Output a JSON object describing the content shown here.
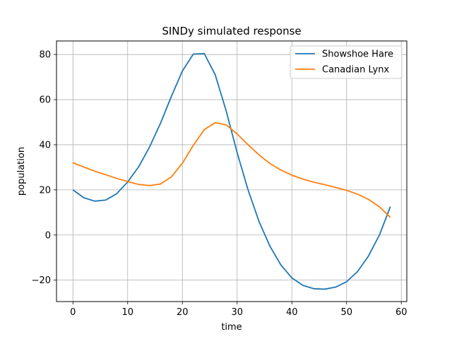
{
  "chart_data": {
    "type": "line",
    "title": "SINDy simulated response",
    "xlabel": "time",
    "ylabel": "population",
    "xlim": [
      -3,
      61
    ],
    "ylim": [
      -29.5,
      86
    ],
    "xticks": [
      0,
      10,
      20,
      30,
      40,
      50,
      60
    ],
    "yticks": [
      -20,
      0,
      20,
      40,
      60,
      80
    ],
    "grid": true,
    "legend_position": "top-right",
    "x": [
      0,
      2,
      4,
      6,
      8,
      10,
      12,
      14,
      16,
      18,
      20,
      22,
      24,
      26,
      28,
      30,
      32,
      34,
      36,
      38,
      40,
      42,
      44,
      46,
      48,
      50,
      52,
      54,
      56,
      58
    ],
    "series": [
      {
        "name": "Showshoe Hare",
        "color": "#1f77b4",
        "values": [
          20,
          16.5,
          15,
          15.5,
          18.3,
          23.5,
          30.2,
          39,
          49.5,
          61.5,
          72.7,
          80.2,
          80.4,
          71,
          55,
          36.5,
          20,
          6,
          -5,
          -13.3,
          -19,
          -22.3,
          -23.8,
          -24,
          -23.1,
          -20.7,
          -16.2,
          -9.3,
          0,
          12.6
        ]
      },
      {
        "name": "Canadian Lynx",
        "color": "#ff7f0e",
        "values": [
          32,
          30.1,
          28.3,
          26.7,
          25.1,
          23.7,
          22.4,
          21.9,
          22.6,
          25.8,
          31.8,
          39.8,
          46.7,
          49.8,
          48.8,
          44.8,
          40,
          35.5,
          31.7,
          28.8,
          26.5,
          24.8,
          23.4,
          22.3,
          21.1,
          19.8,
          18.1,
          15.8,
          12.5,
          7.8
        ]
      }
    ]
  }
}
